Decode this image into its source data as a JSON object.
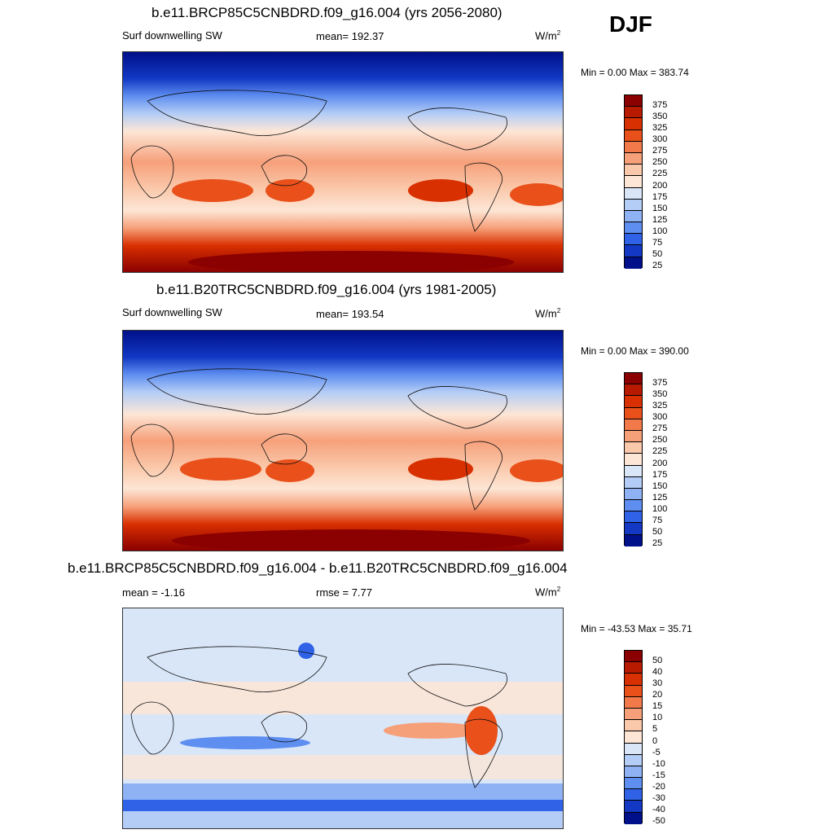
{
  "season": "DJF",
  "panels": [
    {
      "title": "b.e11.BRCP85C5CNBDRD.f09_g16.004 (yrs 2056-2080)",
      "left_label": "Surf downwelling SW",
      "center_label": "mean= 192.37",
      "units_base": "W/m",
      "units_exp": "2",
      "minmax": "Min =   0.00 Max = 383.74",
      "colorbar_labels": [
        "375",
        "350",
        "325",
        "300",
        "275",
        "250",
        "225",
        "200",
        "175",
        "150",
        "125",
        "100",
        "75",
        "50",
        "25"
      ]
    },
    {
      "title": "b.e11.B20TRC5CNBDRD.f09_g16.004 (yrs 1981-2005)",
      "left_label": "Surf downwelling SW",
      "center_label": "mean= 193.54",
      "units_base": "W/m",
      "units_exp": "2",
      "minmax": "Min =   0.00 Max = 390.00",
      "colorbar_labels": [
        "375",
        "350",
        "325",
        "300",
        "275",
        "250",
        "225",
        "200",
        "175",
        "150",
        "125",
        "100",
        "75",
        "50",
        "25"
      ]
    },
    {
      "title": "b.e11.BRCP85C5CNBDRD.f09_g16.004 - b.e11.B20TRC5CNBDRD.f09_g16.004",
      "left_label": "mean =  -1.16",
      "center_label": "rmse =   7.77",
      "units_base": "W/m",
      "units_exp": "2",
      "minmax": "Min = -43.53 Max =  35.71",
      "colorbar_labels": [
        "50",
        "40",
        "30",
        "20",
        "15",
        "10",
        "5",
        "0",
        "-5",
        "-10",
        "-15",
        "-20",
        "-30",
        "-40",
        "-50"
      ]
    }
  ],
  "colors": {
    "abs_scale": [
      "#8b0000",
      "#b81a00",
      "#d83000",
      "#e9501a",
      "#f27a4a",
      "#f6a07a",
      "#fac8aa",
      "#fde6d6",
      "#d8e6f8",
      "#b4cdf6",
      "#8eb2f4",
      "#5e8ef0",
      "#2f62e6",
      "#1238c4",
      "#00108a"
    ],
    "diff_scale": [
      "#8b0000",
      "#b81a00",
      "#d83000",
      "#e9501a",
      "#f27a4a",
      "#f6a07a",
      "#fac8aa",
      "#fde6d6",
      "#d8e6f8",
      "#b4cdf6",
      "#8eb2f4",
      "#5e8ef0",
      "#2f62e6",
      "#1238c4",
      "#00108a"
    ]
  }
}
